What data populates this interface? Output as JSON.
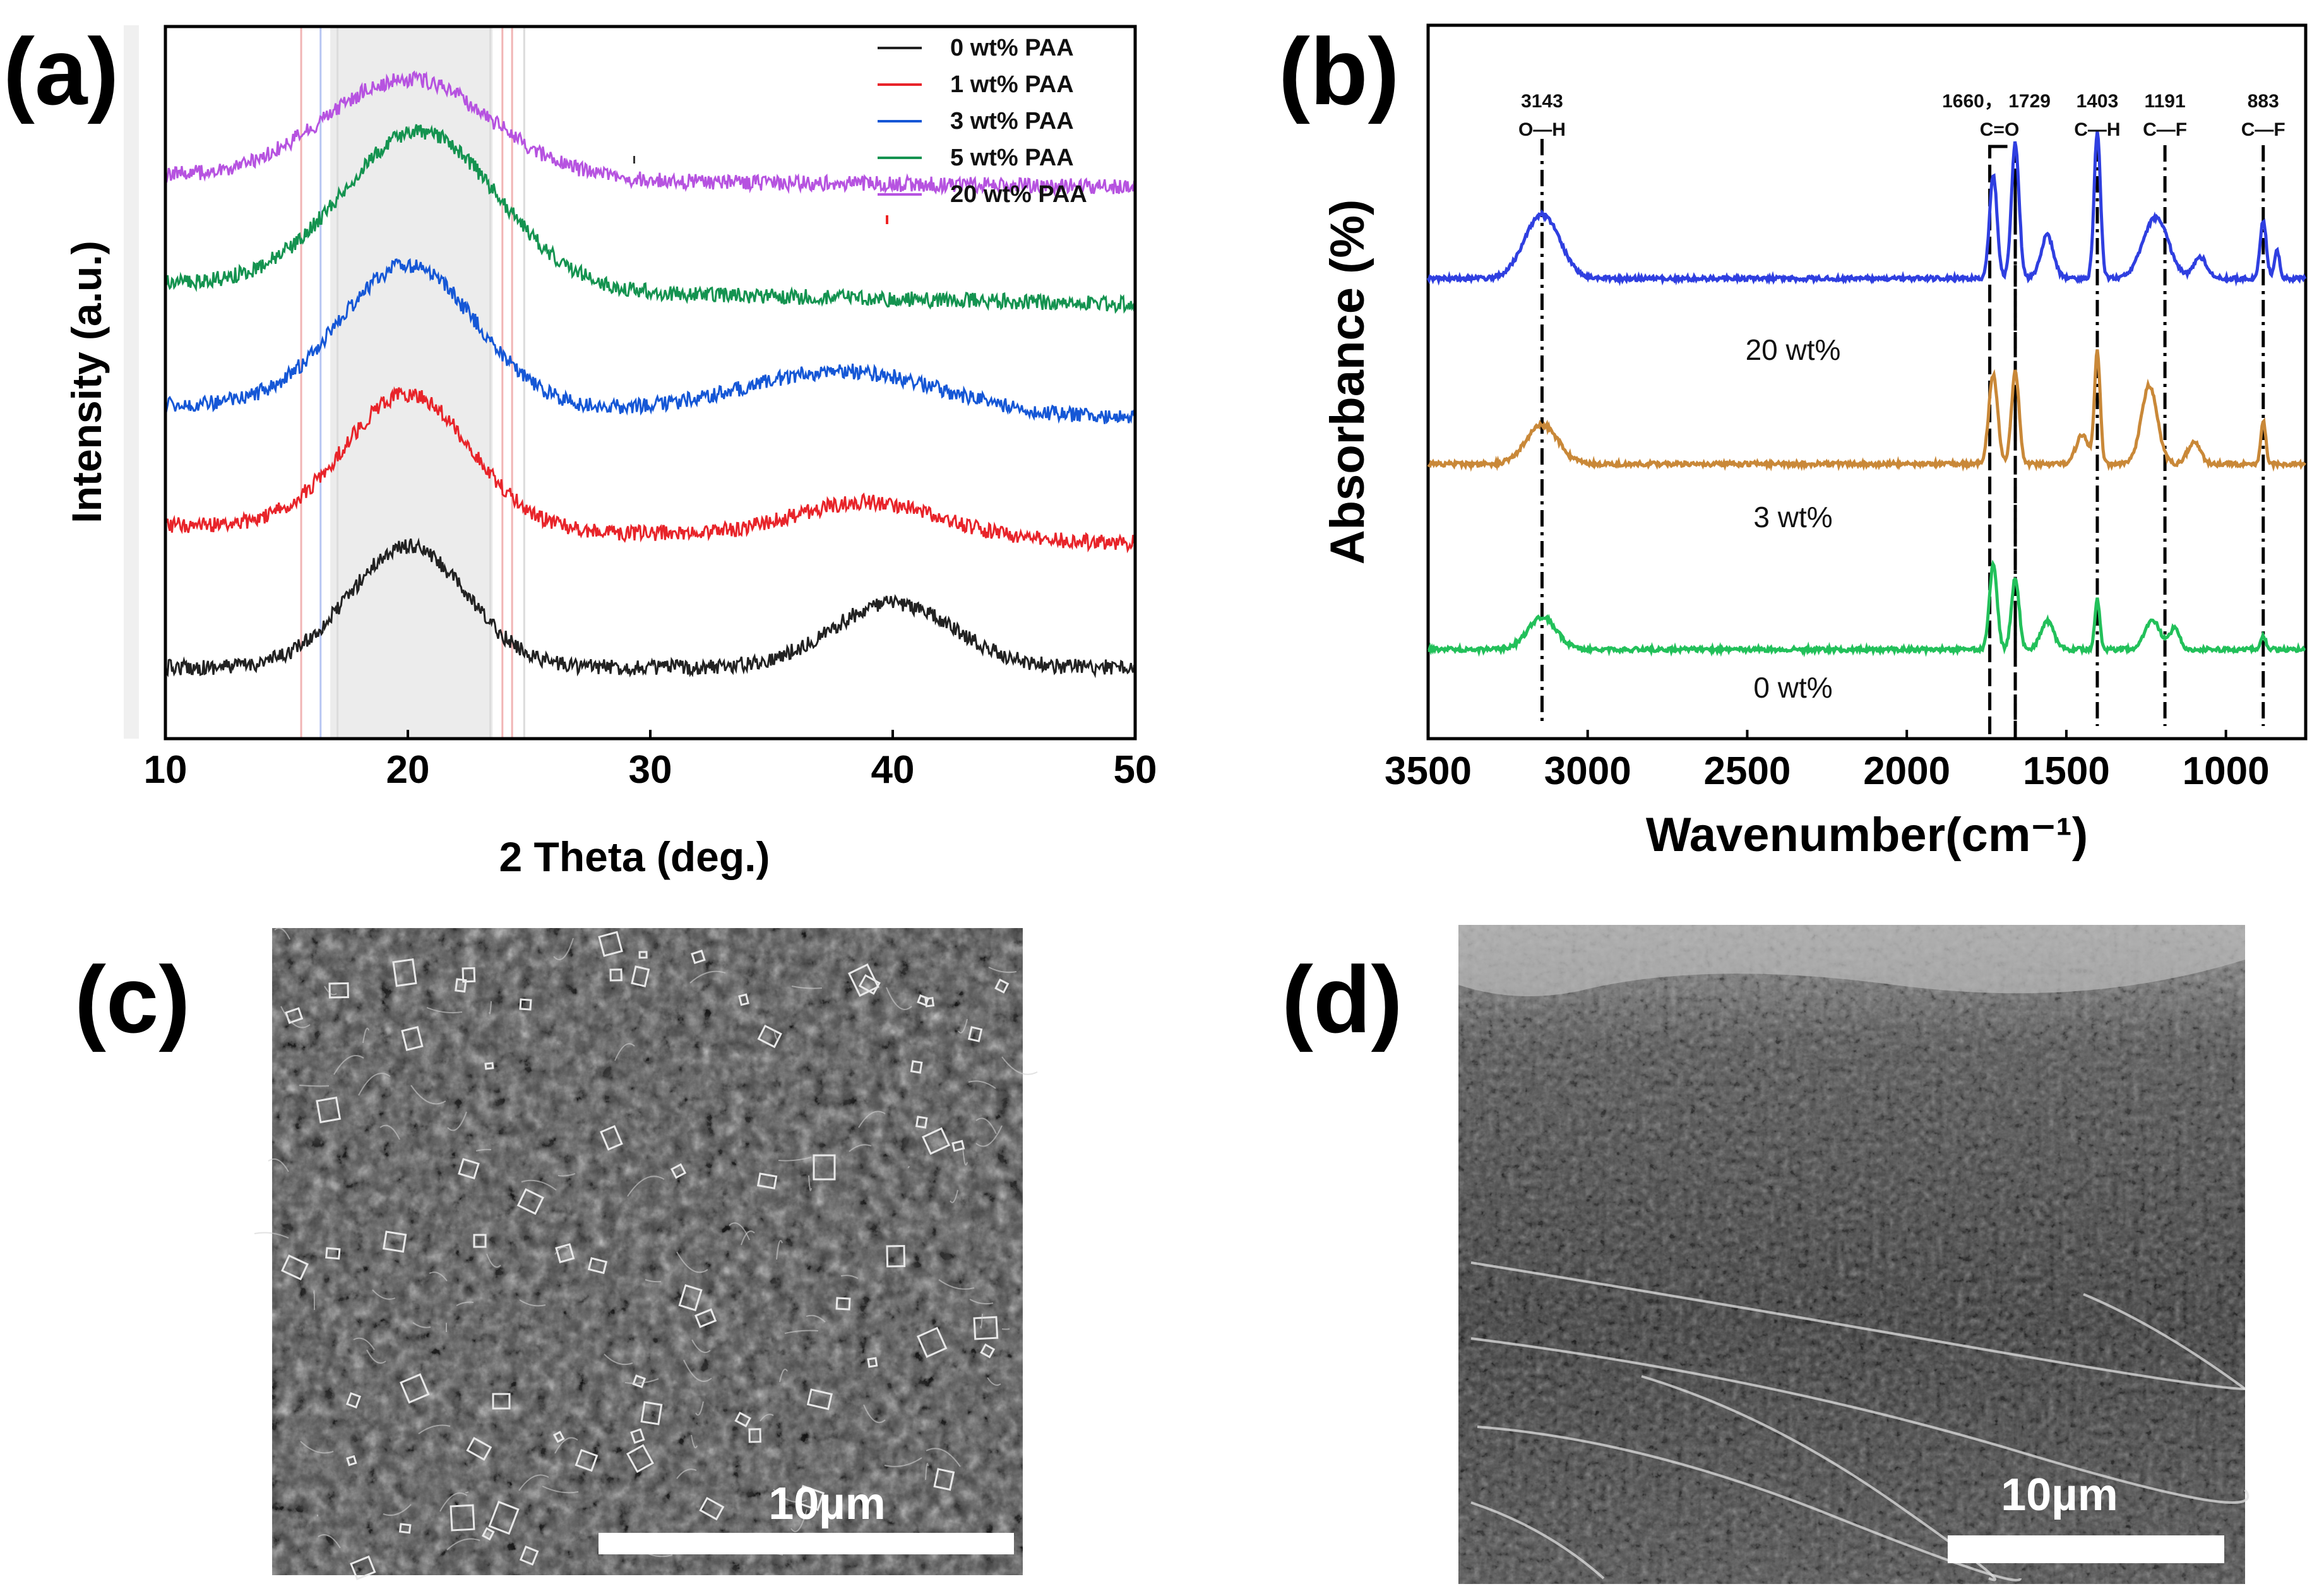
{
  "panels": {
    "a": "(a)",
    "b": "(b)",
    "c": "(c)",
    "d": "(d)"
  },
  "chart_data": [
    {
      "type": "line",
      "title": "",
      "xlabel": "2 Theta (deg.)",
      "ylabel": "Intensity (a.u.)",
      "xlim": [
        10,
        50
      ],
      "xticks": [
        10,
        20,
        30,
        40,
        50
      ],
      "highlight_band": [
        15,
        25
      ],
      "series": [
        {
          "name": "0 wt% PAA",
          "color": "#222222",
          "baseline": 0.9,
          "peaks": [
            {
              "x": 20.0,
              "h": 0.17,
              "w": 2.4
            },
            {
              "x": 40.0,
              "h": 0.09,
              "w": 2.5
            }
          ],
          "slope": 0.0
        },
        {
          "name": "1 wt% PAA",
          "color": "#e8242a",
          "baseline": 0.7,
          "peaks": [
            {
              "x": 20.0,
              "h": 0.19,
              "w": 2.6
            },
            {
              "x": 39.0,
              "h": 0.05,
              "w": 3.0
            }
          ],
          "slope": 0.05
        },
        {
          "name": "3 wt% PAA",
          "color": "#1557d6",
          "baseline": 0.53,
          "peaks": [
            {
              "x": 20.0,
              "h": 0.2,
              "w": 2.8
            },
            {
              "x": 38.0,
              "h": 0.06,
              "w": 4.0
            }
          ],
          "slope": 0.04
        },
        {
          "name": "5 wt% PAA",
          "color": "#149350",
          "baseline": 0.36,
          "peaks": [
            {
              "x": 20.5,
              "h": 0.22,
              "w": 3.2
            }
          ],
          "slope": 0.06
        },
        {
          "name": "20 wt% PAA",
          "color": "#b653e0",
          "baseline": 0.21,
          "peaks": [
            {
              "x": 20.0,
              "h": 0.14,
              "w": 3.4
            }
          ],
          "slope": 0.03
        }
      ]
    },
    {
      "type": "line",
      "title": "",
      "xlabel": "Wavenumber(cm⁻¹)",
      "ylabel": "Absorbance (%)",
      "xlim": [
        3500,
        750
      ],
      "xticks": [
        3500,
        3000,
        2500,
        2000,
        1500,
        1000
      ],
      "series": [
        {
          "name": "0 wt%",
          "color": "#22c05a",
          "baseline": 0.875
        },
        {
          "name": "3 wt%",
          "color": "#c98838",
          "baseline": 0.615
        },
        {
          "name": "20 wt%",
          "color": "#2f3fe0",
          "baseline": 0.355
        }
      ],
      "annotations": [
        {
          "x": 3143,
          "value": "3143",
          "group": "O—H"
        },
        {
          "x": 1660,
          "value": "1660， 1729",
          "group": "C=O"
        },
        {
          "x": 1403,
          "value": "1403",
          "group": "C—H"
        },
        {
          "x": 1191,
          "value": "1191",
          "group": "C—F"
        },
        {
          "x": 883,
          "value": "883",
          "group": "C—F"
        }
      ],
      "co_box": [
        1740,
        1660
      ]
    }
  ],
  "images": {
    "c": {
      "scale_bar": "10µm"
    },
    "d": {
      "scale_bar": "10µm"
    }
  }
}
